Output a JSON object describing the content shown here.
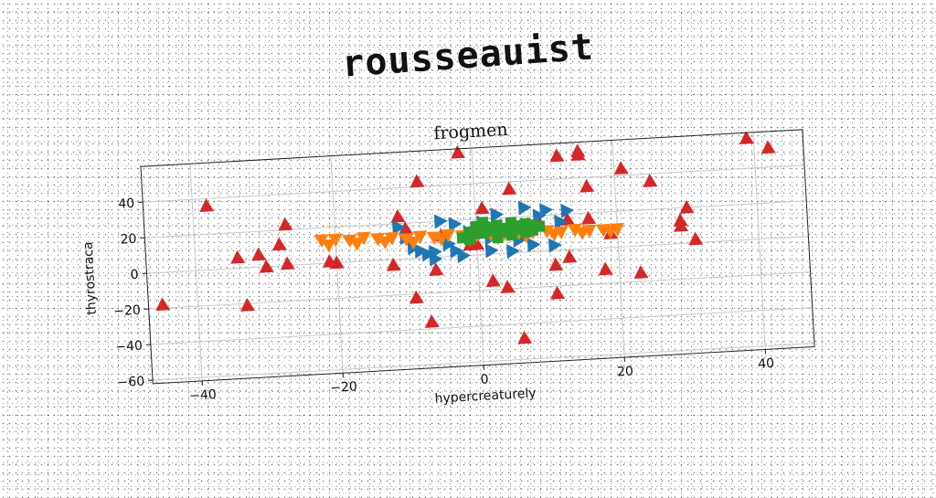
{
  "banner": {
    "text": "rousseauist"
  },
  "chart_data": {
    "type": "scatter",
    "title": "frogmen",
    "xlabel": "hypercreaturely",
    "ylabel": "thyrostraca",
    "xlim": [
      -47,
      47
    ],
    "ylim": [
      -62,
      60
    ],
    "xticks": [
      -40,
      -20,
      0,
      20,
      40
    ],
    "yticks": [
      -60,
      -40,
      -20,
      0,
      20,
      40
    ],
    "grid": true,
    "series": [
      {
        "color": "#d62728",
        "marker": "triangle-up",
        "points": [
          [
            -45,
            -18
          ],
          [
            -38,
            36
          ],
          [
            -34,
            6
          ],
          [
            -33,
            -21
          ],
          [
            -31,
            7
          ],
          [
            -30,
            0
          ],
          [
            -28,
            12
          ],
          [
            -27,
            23
          ],
          [
            -27,
            1
          ],
          [
            -21,
            1
          ],
          [
            -20,
            0
          ],
          [
            -12,
            -3
          ],
          [
            -11,
            24
          ],
          [
            -10,
            17
          ],
          [
            -8,
            43
          ],
          [
            -9,
            -22
          ],
          [
            -7,
            -36
          ],
          [
            -6,
            -7
          ],
          [
            -5,
            12
          ],
          [
            -2,
            58
          ],
          [
            -1,
            6
          ],
          [
            0,
            6
          ],
          [
            1,
            26
          ],
          [
            2,
            -15
          ],
          [
            4,
            -19
          ],
          [
            5,
            36
          ],
          [
            6,
            -48
          ],
          [
            9,
            16
          ],
          [
            11,
            -8
          ],
          [
            11,
            -24
          ],
          [
            12,
            53
          ],
          [
            13,
            -4
          ],
          [
            13,
            17
          ],
          [
            15,
            55
          ],
          [
            15,
            53
          ],
          [
            16,
            35
          ],
          [
            16,
            17
          ],
          [
            18,
            -12
          ],
          [
            19,
            8
          ],
          [
            21,
            44
          ],
          [
            23,
            -15
          ],
          [
            25,
            36
          ],
          [
            29,
            10
          ],
          [
            29,
            13
          ],
          [
            30,
            20
          ],
          [
            31,
            2
          ],
          [
            39,
            57
          ],
          [
            42,
            51
          ]
        ]
      },
      {
        "color": "#1f77b4",
        "marker": "triangle-right",
        "points": [
          [
            -11,
            18
          ],
          [
            -10,
            12
          ],
          [
            -9,
            6
          ],
          [
            -8,
            4
          ],
          [
            -7,
            2
          ],
          [
            -6,
            -1
          ],
          [
            -5,
            20
          ],
          [
            -4,
            7
          ],
          [
            -3,
            3
          ],
          [
            -2,
            0
          ],
          [
            -1,
            13
          ],
          [
            0,
            10
          ],
          [
            1,
            18
          ],
          [
            2,
            2
          ],
          [
            3,
            22
          ],
          [
            4,
            13
          ],
          [
            5,
            1
          ],
          [
            6,
            14
          ],
          [
            7,
            25
          ],
          [
            8,
            4
          ],
          [
            9,
            20
          ],
          [
            10,
            23
          ],
          [
            11,
            3
          ],
          [
            12,
            16
          ],
          [
            13,
            22
          ],
          [
            -6,
            3
          ],
          [
            -3,
            18
          ],
          [
            2,
            9
          ],
          [
            6,
            7
          ]
        ]
      },
      {
        "color": "#ff7f0e",
        "marker": "triangle-down",
        "points": [
          [
            -22,
            13
          ],
          [
            -20,
            13
          ],
          [
            -18,
            12
          ],
          [
            -16,
            13
          ],
          [
            -14,
            12
          ],
          [
            -12,
            12
          ],
          [
            -10,
            11
          ],
          [
            -8,
            12
          ],
          [
            -6,
            11
          ],
          [
            -4,
            12
          ],
          [
            -2,
            11
          ],
          [
            0,
            11
          ],
          [
            2,
            11
          ],
          [
            4,
            11
          ],
          [
            6,
            11
          ],
          [
            8,
            11
          ],
          [
            10,
            11
          ],
          [
            12,
            10
          ],
          [
            14,
            11
          ],
          [
            16,
            10
          ],
          [
            18,
            10
          ],
          [
            20,
            10
          ],
          [
            -21,
            10
          ],
          [
            -17,
            10
          ],
          [
            -13,
            10
          ],
          [
            -9,
            9
          ],
          [
            -5,
            10
          ],
          [
            -1,
            9
          ],
          [
            3,
            9
          ],
          [
            7,
            9
          ],
          [
            11,
            9
          ],
          [
            15,
            9
          ],
          [
            19,
            9
          ]
        ]
      },
      {
        "color": "#2ca02c",
        "marker": "square",
        "points": [
          [
            -2,
            10
          ],
          [
            -1,
            13
          ],
          [
            0,
            16
          ],
          [
            1,
            12
          ],
          [
            2,
            15
          ],
          [
            3,
            11
          ],
          [
            4,
            14
          ],
          [
            5,
            17
          ],
          [
            6,
            13
          ],
          [
            7,
            16
          ],
          [
            8,
            12
          ],
          [
            9,
            14
          ],
          [
            -1,
            9
          ],
          [
            1,
            18
          ],
          [
            3,
            9
          ],
          [
            5,
            10
          ],
          [
            7,
            11
          ],
          [
            2,
            13
          ],
          [
            4,
            12
          ],
          [
            6,
            15
          ],
          [
            8,
            15
          ],
          [
            0,
            12
          ],
          [
            3,
            16
          ],
          [
            5,
            14
          ]
        ]
      }
    ]
  }
}
